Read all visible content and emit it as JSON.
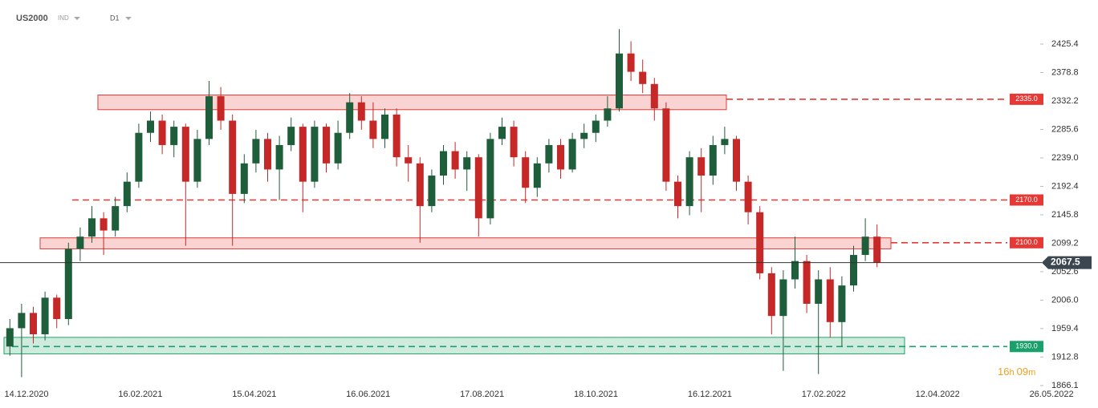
{
  "chart_data": {
    "type": "candlestick",
    "symbol": "US2000",
    "symbol_type": "IND",
    "interval": "D1",
    "timer": [
      "16",
      "h",
      "09",
      "m"
    ],
    "x_labels": [
      "14.12.2020",
      "16.02.2021",
      "15.04.2021",
      "16.06.2021",
      "17.08.2021",
      "18.10.2021",
      "16.12.2021",
      "17.02.2022",
      "12.04.2022",
      "26.05.2022"
    ],
    "ylim": [
      1860.8,
      2497.6
    ],
    "yticks": [
      2425.4,
      2378.8,
      2332.2,
      2285.6,
      {
        "value": 2239.0,
        "label": "2239.0"
      },
      2192.4,
      2145.8,
      2099.2,
      2052.6,
      {
        "value": 2006.0,
        "label": "2006.0"
      },
      1959.4,
      1912.8,
      1866.1
    ],
    "up_color": "#1f5e3a",
    "down_color": "#c62828",
    "open": [
      1930,
      1960,
      1985,
      1950,
      2010,
      1975,
      2090,
      2110,
      2140,
      2120,
      2160,
      2200,
      2280,
      2300,
      2260,
      2290,
      2200,
      2270,
      2340,
      2300,
      2180,
      2230,
      2270,
      2220,
      2260,
      2290,
      2200,
      2290,
      2230,
      2280,
      2330,
      2300,
      2270,
      2310,
      2240,
      2230,
      2160,
      2210,
      2250,
      2220,
      2240,
      2140,
      2270,
      2290,
      2240,
      2190,
      2230,
      2260,
      2220,
      2270,
      2280,
      2300,
      2320,
      2410,
      2380,
      2360,
      2320,
      2200,
      2160,
      2240,
      2210,
      2260,
      2270,
      2200,
      2150,
      2050,
      1980,
      2040,
      2070,
      2000,
      2040,
      1970,
      2030,
      2080,
      2110
    ],
    "high": [
      1975,
      2000,
      1995,
      2020,
      2015,
      2100,
      2125,
      2160,
      2150,
      2175,
      2215,
      2295,
      2315,
      2310,
      2300,
      2295,
      2285,
      2365,
      2355,
      2310,
      2245,
      2285,
      2280,
      2275,
      2305,
      2295,
      2300,
      2295,
      2300,
      2345,
      2340,
      2330,
      2320,
      2320,
      2260,
      2240,
      2220,
      2260,
      2265,
      2250,
      2245,
      2280,
      2305,
      2300,
      2250,
      2240,
      2270,
      2270,
      2280,
      2295,
      2310,
      2340,
      2450,
      2430,
      2400,
      2370,
      2330,
      2210,
      2250,
      2255,
      2275,
      2290,
      2275,
      2210,
      2160,
      2060,
      2055,
      2110,
      2080,
      2055,
      2060,
      2045,
      2095,
      2140,
      2130
    ],
    "low": [
      1915,
      1880,
      1935,
      1940,
      1960,
      1965,
      2070,
      2100,
      2080,
      2110,
      2150,
      2190,
      2265,
      2245,
      2240,
      2095,
      2190,
      2260,
      2285,
      2095,
      2165,
      2215,
      2200,
      2170,
      2250,
      2150,
      2190,
      2215,
      2220,
      2270,
      2285,
      2255,
      2255,
      2225,
      2200,
      2100,
      2150,
      2195,
      2205,
      2185,
      2110,
      2130,
      2260,
      2225,
      2165,
      2175,
      2215,
      2205,
      2215,
      2255,
      2265,
      2290,
      2315,
      2365,
      2345,
      2300,
      2185,
      2140,
      2145,
      2150,
      2195,
      2245,
      2185,
      2130,
      2040,
      1950,
      1890,
      2025,
      1985,
      1885,
      1945,
      1930,
      2020,
      2070,
      2060
    ],
    "close": [
      1960,
      1985,
      1950,
      2010,
      1975,
      2090,
      2110,
      2140,
      2120,
      2160,
      2200,
      2280,
      2300,
      2260,
      2290,
      2200,
      2270,
      2340,
      2300,
      2180,
      2230,
      2270,
      2220,
      2260,
      2290,
      2200,
      2290,
      2230,
      2280,
      2330,
      2300,
      2270,
      2310,
      2240,
      2230,
      2160,
      2210,
      2250,
      2220,
      2240,
      2140,
      2270,
      2290,
      2240,
      2190,
      2230,
      2260,
      2220,
      2270,
      2280,
      2300,
      2320,
      2410,
      2380,
      2360,
      2320,
      2200,
      2160,
      2240,
      2210,
      2260,
      2270,
      2200,
      2150,
      2050,
      1980,
      2040,
      2070,
      2000,
      2040,
      1970,
      2030,
      2080,
      2110,
      2067.5
    ],
    "zones": [
      {
        "low": 2318,
        "high": 2342,
        "color": "#e53935"
      },
      {
        "low": 2090,
        "high": 2108,
        "color": "#e53935"
      },
      {
        "low": 1918,
        "high": 1945,
        "color": "#26a269"
      }
    ],
    "levels": [
      {
        "value": 2335.0,
        "label": "2335.0",
        "color": "#e53935"
      },
      {
        "value": 2170.0,
        "label": "2170.0",
        "color": "#e53935"
      },
      {
        "value": 2100.0,
        "label": "2100.0",
        "color": "#e53935"
      },
      {
        "value": 1930.0,
        "label": "1930.0",
        "color": "#1aa06a"
      }
    ],
    "last_price": 2067.5
  }
}
